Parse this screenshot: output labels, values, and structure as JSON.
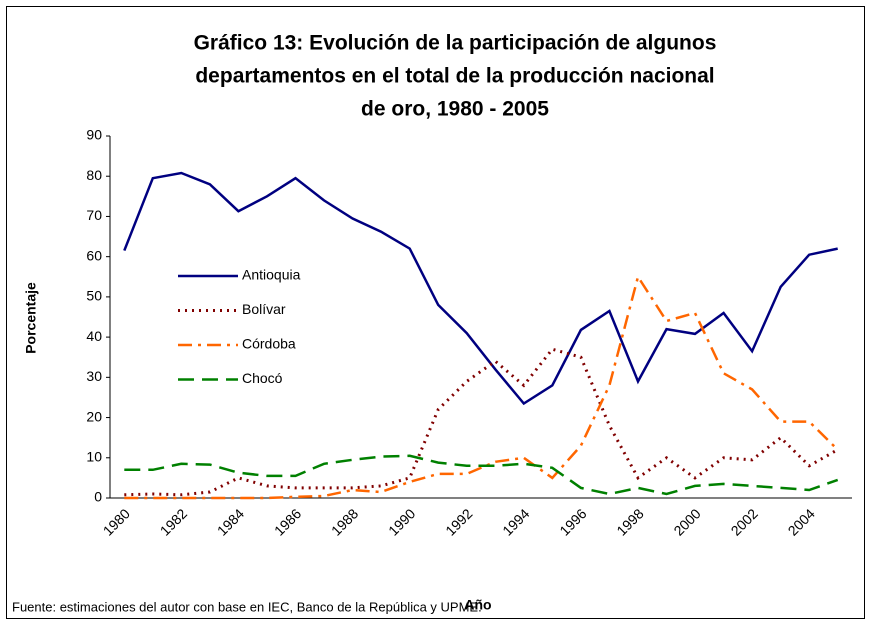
{
  "chart_data": {
    "type": "line",
    "title": [
      "Gráfico 13: Evolución de la participación de algunos",
      "departamentos en el total de la producción nacional",
      "de oro, 1980 - 2005"
    ],
    "x_label": "Año",
    "y_label": "Porcentaje",
    "source": "Fuente: estimaciones del autor con base en IEC, Banco de la República y UPME.",
    "categories": [
      "1980",
      null,
      "1982",
      null,
      "1984",
      null,
      "1986",
      null,
      "1988",
      null,
      "1990",
      null,
      "1992",
      null,
      "1994",
      null,
      "1996",
      null,
      "1998",
      null,
      "2000",
      null,
      "2002",
      null,
      "2004",
      null
    ],
    "ylim": [
      0,
      90
    ],
    "yticks": [
      0,
      10,
      20,
      30,
      40,
      50,
      60,
      70,
      80,
      90
    ],
    "grid": false,
    "legend": "left",
    "series": [
      {
        "name": "Antioquia",
        "color": "#000080",
        "dash": "solid",
        "values": [
          61.5,
          79.5,
          80.8,
          78,
          71.3,
          75,
          79.5,
          74,
          69.5,
          66.2,
          62,
          48,
          41,
          32,
          23.5,
          28,
          41.8,
          46.5,
          29,
          42,
          40.8,
          46,
          36.5,
          52.5,
          60.5,
          62
        ]
      },
      {
        "name": "Bolívar",
        "color": "#800000",
        "dash": "dot",
        "values": [
          0.8,
          1,
          0.8,
          1.5,
          5,
          3,
          2.5,
          2.5,
          2.5,
          3,
          5,
          22,
          29,
          34,
          28,
          37,
          35,
          18,
          5,
          10,
          5,
          10,
          9.5,
          15,
          8,
          12
        ]
      },
      {
        "name": "Córdoba",
        "color": "#ff6600",
        "dash": "dashdot",
        "values": [
          0,
          0,
          0,
          0,
          0,
          0,
          0.3,
          0.5,
          2,
          1.5,
          4,
          6,
          6,
          9,
          10,
          5,
          13,
          28,
          55,
          44,
          46,
          31,
          27,
          19,
          19,
          12
        ]
      },
      {
        "name": "Chocó",
        "color": "#008000",
        "dash": "dash",
        "values": [
          7,
          7,
          8.5,
          8.3,
          6.3,
          5.5,
          5.5,
          8.5,
          9.5,
          10.3,
          10.5,
          8.8,
          8,
          8,
          8.5,
          7.5,
          2.5,
          1,
          2.5,
          1,
          3,
          3.5,
          3,
          2.5,
          2,
          4.5
        ]
      }
    ]
  }
}
